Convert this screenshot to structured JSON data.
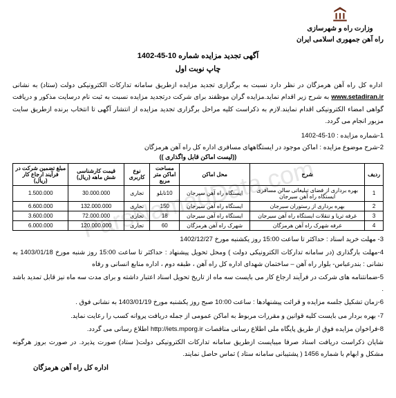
{
  "watermark": "ParsNamadData.com",
  "header": {
    "ministry_line1": "وزارت راه و شهرسازی",
    "ministry_line2": "راه آهن جمهوری اسلامی ایران"
  },
  "title": {
    "line1": "آگهی تجدید مزایده شماره 10-45-1402",
    "line2": "چاپ نوبت اول"
  },
  "intro": {
    "text_before_site": "اداره کل راه آهن هرمزگان در نظر دارد نسبت به برگزاری تجدید مزایده ازطریق سامانه تدارکات الکترونیکی دولت (ستاد) به نشانی ",
    "site": "www.setadiran.ir",
    "text_after_site": " به شرح زیر اقدام نماید.مزایده گران موظفند برای شرکت درتجدید مزایده نسبت به ثبت نام درسایت مذکور و  دریافت گواهی امضاء الکترونیکی اقدام نمایند.لازم به ذکراست کلیه مراحل برگزاری تجدید مزایده از انتشار آگهی تا انتخاب برنده ازطریق سایت مزبور انجام می گردد."
  },
  "num1": "1-شماره مزایده :  10-45-1402",
  "num2": "2-شرح موضوع مزایده : اماکن  موجود در ایستگاههای مسافری اداره کل راه آهن هرمزگان",
  "subnote": "((لیست اماکن قابل واگذاری ))",
  "table": {
    "columns": [
      "ردیف",
      "شرح",
      "محل اماکن",
      "مساحت اماکن متر مربع",
      "نوع کاربری",
      "قیمت کارشناسی شش ماهه (ریال)",
      "مبلغ تضمین شرکت در فرآیند ارجاع کار (ریال)"
    ],
    "rows": [
      [
        "1",
        "بهره برداری از فضای تبلیغاتی سالن مسافری ایستگاه راه آهن سیرجان",
        "ایستگاه راه آهن سیرجان",
        "10تابلو",
        "تجاری",
        "30.000.000",
        "1.500.000"
      ],
      [
        "2",
        "بهره برداری از رستوران سیرجان",
        "ایستگاه راه آهن سیرجان",
        "150",
        "تجاری",
        "132.000.000",
        "6.600.000"
      ],
      [
        "3",
        "غرفه تریا و تنقلات ایستگاه راه آهن سیرجان",
        "ایستگاه راه آهن سیرجان",
        "18",
        "تجاری",
        "72.000.000",
        "3.600.000"
      ],
      [
        "4",
        "غرفه شهرک راه آهن هرمزگان",
        "شهرک راه آهن هرمزگان",
        "60",
        "تجاری",
        "120.000.000",
        "6.000.000"
      ]
    ],
    "col_widths": [
      "5%",
      "31%",
      "19%",
      "8%",
      "7%",
      "15%",
      "15%"
    ]
  },
  "p3": "3- مهلت خرید اسناد : حداکثر تا ساعت 15:00 روز یکشنبه  مورخ 1402/12/27",
  "p4": "4-مهلت بارگذاری (در سامانه تدارکات الکترونیکی دولت ) ومحل تحویل پیشنهاد : حداکثر  تا ساعت 15:00 روز شنبه مورخ 1403/01/18 به نشانی : بندرعباس- بلوار راه آهن – ساختمان شهدای اداره کل راه آهن ، طبقه دوم ، اداره منابع انسانی و رفاه",
  "p5": "5-ضمانتنامه های شرکت در فرآیند ارجاع کار می بایست سه ماه از تاریخ تحویل اسناد اعتبار داشته و برای مدت سه ماه نیز قابل تمدید باشد .",
  "p6": "6-زمان تشکیل جلسه مزایده و قرائت پیشنهادها  : ساعت 10:00 صبح روز یکشنبه مورخ 1403/01/19  به نشانی فوق .",
  "p7": "7- بهره بردار می بایست کلیه قوانین و مقررات مربوط به اماکن عمومی از جمله دریافت پروانه کسب را رعایت نماید.",
  "p8_before": "8-فراخوان مزایده  فوق از طریق پایگاه ملی اطلاع رسانی مناقصات ",
  "p8_site": "http://iets.mporg.ir",
  "p8_after": " اطلاع رسانی می گردد.",
  "p9": "شایان ذکراست دریافت اسناد صرفا میبایست ازطریق سامانه تدارکات الکترونیکی دولت( ستاد) صورت پذیرد. در صورت بروز هرگونه مشکل و ابهام با شماره 1456 ( پشتیبانی سامانه ستاد ) تماس حاصل نمایند.",
  "signature": "اداره کل راه آهن هرمزگان",
  "colors": {
    "text": "#000000",
    "bg": "#ffffff",
    "logo": "#6b2e1a",
    "watermark": "rgba(180,180,180,0.35)"
  }
}
